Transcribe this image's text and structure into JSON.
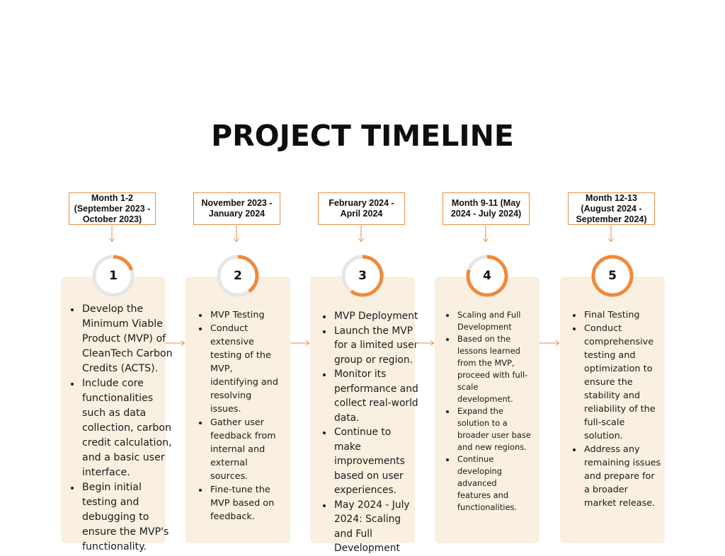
{
  "title": "PROJECT TIMELINE",
  "accent_color": "#ef8a3c",
  "ring_track_color": "#e6e6e6",
  "card_color": "#f9f0e1",
  "phases": [
    {
      "number": "1",
      "progress": 0.2,
      "date": "Month 1-2 (September 2023 - October 2023)",
      "bullets": [
        "Develop the Minimum Viable Product (MVP) of CleanTech Carbon Credits (ACTS).",
        "Include core functionalities such as data collection, carbon credit calculation, and a basic user interface.",
        "Begin initial testing and debugging to ensure the MVP's functionality."
      ]
    },
    {
      "number": "2",
      "progress": 0.4,
      "date": "November 2023 - January 2024",
      "bullets": [
        "MVP Testing",
        "Conduct extensive testing of the MVP, identifying and resolving issues.",
        "Gather user feedback from internal and external sources.",
        "Fine-tune the MVP based on feedback."
      ]
    },
    {
      "number": "3",
      "progress": 0.6,
      "date": "February 2024 - April 2024",
      "bullets": [
        "MVP Deployment",
        "Launch the MVP for a limited user group or region.",
        "Monitor its performance and collect real-world data.",
        "Continue to make improvements based on user experiences.",
        "May 2024 - July 2024: Scaling and Full Development"
      ]
    },
    {
      "number": "4",
      "progress": 0.8,
      "date": "Month 9-11 (May 2024 - July 2024)",
      "bullets": [
        "Scaling and Full Development",
        "Based on the lessons learned from the MVP, proceed with full-scale development.",
        "Expand the solution to a broader user base and new regions.",
        "Continue developing advanced features and functionalities."
      ]
    },
    {
      "number": "5",
      "progress": 1.0,
      "date": "Month 12-13 (August 2024 - September 2024)",
      "bullets": [
        "Final Testing",
        "Conduct comprehensive testing and optimization to ensure the stability and reliability of the full-scale solution.",
        "Address any remaining issues and prepare for a broader market release."
      ]
    }
  ]
}
